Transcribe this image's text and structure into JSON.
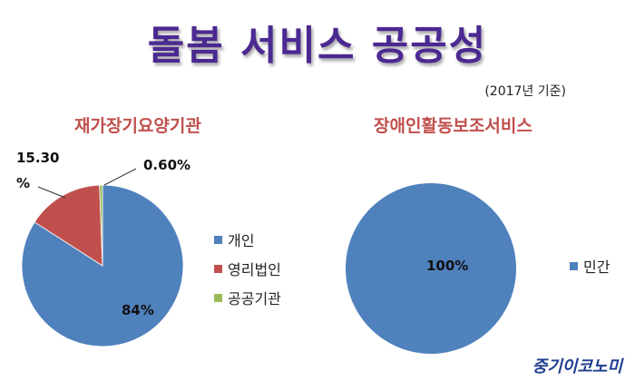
{
  "header": {
    "title": "돌봄 서비스 공공성",
    "note": "(2017년 기준)"
  },
  "brand": "중기이코노미",
  "colors": {
    "title": "#4b2991",
    "chart_title": "#c0504d",
    "blue": "#4f81bd",
    "red": "#c0504d",
    "green": "#9bbb59"
  },
  "chart_data": [
    {
      "type": "pie",
      "title": "재가장기요양기관",
      "categories": [
        "개인",
        "영리법인",
        "공공기관"
      ],
      "values": [
        84,
        15.3,
        0.6
      ],
      "data_labels": [
        "84%",
        "15.30\n%",
        "0.60%"
      ],
      "colors": [
        "#4f81bd",
        "#c0504d",
        "#9bbb59"
      ],
      "legend": "right"
    },
    {
      "type": "pie",
      "title": "장애인활동보조서비스",
      "categories": [
        "민간"
      ],
      "values": [
        100
      ],
      "data_labels": [
        "100%"
      ],
      "colors": [
        "#4f81bd"
      ],
      "legend": "right"
    }
  ]
}
